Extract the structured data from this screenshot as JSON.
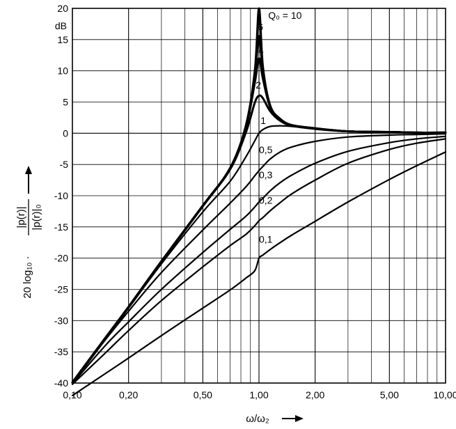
{
  "chart_data": {
    "type": "line",
    "x_scale": "log",
    "xlim": [
      0.1,
      10.0
    ],
    "ylim": [
      -40,
      20
    ],
    "grid": true,
    "x_ticks": [
      {
        "value": 0.1,
        "label": "0,10"
      },
      {
        "value": 0.2,
        "label": "0,20"
      },
      {
        "value": 0.5,
        "label": "0,50"
      },
      {
        "value": 1.0,
        "label": "1,00"
      },
      {
        "value": 2.0,
        "label": "2,00"
      },
      {
        "value": 5.0,
        "label": "5,00"
      },
      {
        "value": 10.0,
        "label": "10,00"
      }
    ],
    "y_ticks": [
      {
        "value": 20,
        "label": "20"
      },
      {
        "value": 15,
        "label": "15"
      },
      {
        "value": 10,
        "label": "10"
      },
      {
        "value": 5,
        "label": "5"
      },
      {
        "value": 0,
        "label": "0"
      },
      {
        "value": -5,
        "label": "-5"
      },
      {
        "value": -10,
        "label": "-10"
      },
      {
        "value": -15,
        "label": "-15"
      },
      {
        "value": -20,
        "label": "-20"
      },
      {
        "value": -25,
        "label": "-25"
      },
      {
        "value": -30,
        "label": "-30"
      },
      {
        "value": -35,
        "label": "-35"
      },
      {
        "value": -40,
        "label": "-40"
      }
    ],
    "y_unit": "dB",
    "xlabel": "ω/ω₂",
    "ylabel_prefix": "20 log₁₀ ·",
    "ylabel_numerator": "|p(r)|",
    "ylabel_denominator": "|p(r)|₀",
    "x": [
      0.1,
      0.15,
      0.2,
      0.3,
      0.5,
      0.7,
      0.85,
      0.95,
      1.0,
      1.05,
      1.15,
      1.3,
      1.5,
      2.0,
      3.0,
      5.0,
      7.0,
      10.0
    ],
    "series": [
      {
        "label": "Q₀ = 10",
        "label_at": [
          1.12,
          18.3
        ],
        "values": [
          -39.9,
          -32.8,
          -27.8,
          -20.5,
          -11.6,
          -5.6,
          1.2,
          10.0,
          20.0,
          10.6,
          4.4,
          2.3,
          1.3,
          0.8,
          0.3,
          0.2,
          0.1,
          0.1
        ]
      },
      {
        "label": "6",
        "label_at": [
          0.985,
          16.5
        ],
        "values": [
          -39.9,
          -32.8,
          -27.8,
          -20.5,
          -11.6,
          -5.6,
          1.1,
          9.2,
          15.6,
          9.9,
          4.3,
          2.3,
          1.3,
          0.8,
          0.3,
          0.2,
          0.1,
          0.1
        ]
      },
      {
        "label": "4",
        "label_at": [
          0.99,
          12.7
        ],
        "values": [
          -39.9,
          -32.8,
          -27.8,
          -20.5,
          -11.6,
          -5.6,
          0.9,
          8.1,
          12.0,
          8.7,
          4.1,
          2.2,
          1.3,
          0.8,
          0.3,
          0.2,
          0.1,
          0.1
        ]
      },
      {
        "label": "2",
        "label_at": [
          0.96,
          7.2
        ],
        "values": [
          -39.9,
          -32.8,
          -27.8,
          -20.6,
          -11.7,
          -5.8,
          0.1,
          4.9,
          6.0,
          5.6,
          3.5,
          2.0,
          1.2,
          0.7,
          0.3,
          0.2,
          0.1,
          0.1
        ]
      },
      {
        "label": "1",
        "label_at": [
          1.02,
          1.5
        ],
        "values": [
          -40.0,
          -33.0,
          -28.0,
          -20.9,
          -12.6,
          -7.7,
          -3.8,
          -1.2,
          0.0,
          0.6,
          1.1,
          1.2,
          1.1,
          0.7,
          0.3,
          0.2,
          0.1,
          0.1
        ]
      },
      {
        "label": "0,5",
        "label_at": [
          1.0,
          -3.2
        ],
        "values": [
          -40.1,
          -33.1,
          -28.5,
          -22.3,
          -15.5,
          -11.2,
          -8.6,
          -6.8,
          -6.0,
          -5.3,
          -4.1,
          -3.0,
          -2.2,
          -1.3,
          -0.6,
          -0.3,
          -0.2,
          -0.1
        ]
      },
      {
        "label": "0,3",
        "label_at": [
          1.0,
          -7.2
        ],
        "values": [
          -40.1,
          -34.0,
          -30.2,
          -25.0,
          -19.1,
          -15.4,
          -13.3,
          -11.8,
          -11.0,
          -10.4,
          -9.2,
          -7.9,
          -6.7,
          -4.8,
          -2.9,
          -1.5,
          -0.9,
          -0.5
        ]
      },
      {
        "label": "0,2",
        "label_at": [
          1.0,
          -11.3
        ],
        "values": [
          -40.2,
          -35.2,
          -31.6,
          -26.8,
          -21.4,
          -18.0,
          -16.2,
          -14.8,
          -14.0,
          -13.5,
          -12.4,
          -11.1,
          -9.7,
          -7.5,
          -4.8,
          -2.6,
          -1.6,
          -0.9
        ]
      },
      {
        "label": "0,1",
        "label_at": [
          1.0,
          -17.5
        ],
        "values": [
          -42.0,
          -38.5,
          -36.0,
          -32.4,
          -28.0,
          -25.1,
          -23.2,
          -22.0,
          -20.0,
          -19.5,
          -18.6,
          -17.5,
          -16.3,
          -14.1,
          -11.0,
          -7.4,
          -5.2,
          -3.0
        ]
      }
    ]
  }
}
